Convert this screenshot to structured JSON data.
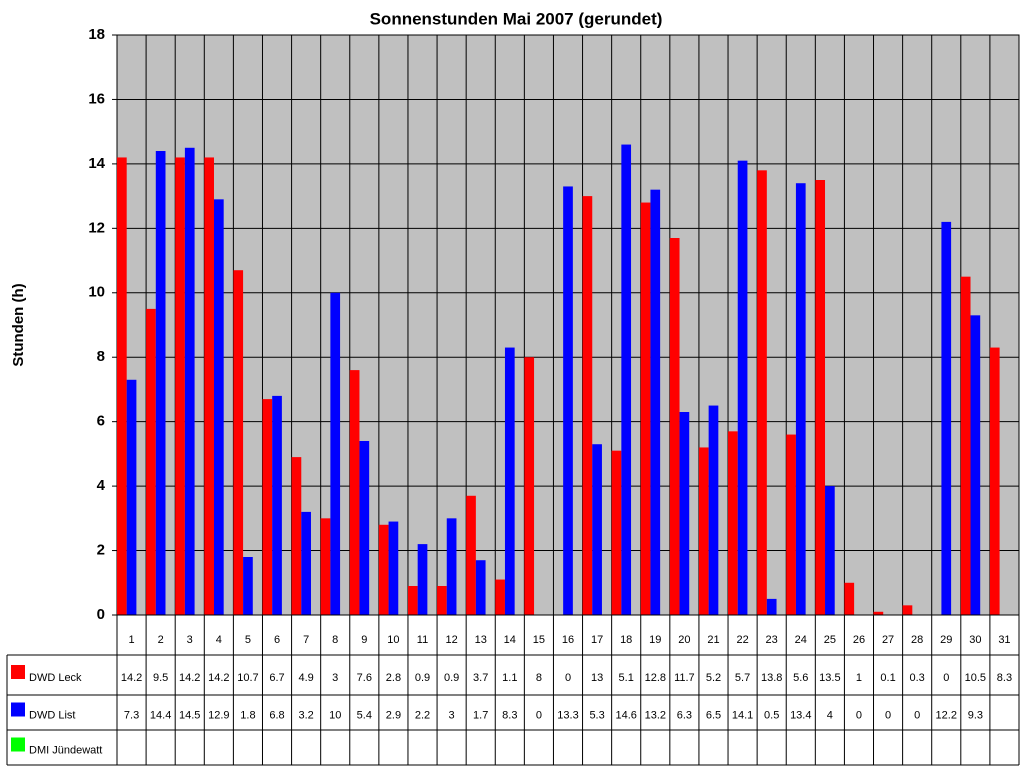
{
  "chart_data": {
    "type": "bar",
    "title": "Sonnenstunden Mai 2007 (gerundet)",
    "y_label": "Stunden (h)",
    "categories": [
      "1",
      "2",
      "3",
      "4",
      "5",
      "6",
      "7",
      "8",
      "9",
      "10",
      "11",
      "12",
      "13",
      "14",
      "15",
      "16",
      "17",
      "18",
      "19",
      "20",
      "21",
      "22",
      "23",
      "24",
      "25",
      "26",
      "27",
      "28",
      "29",
      "30",
      "31"
    ],
    "series": [
      {
        "name": "DWD Leck",
        "color": "#ff0000",
        "values": [
          14.2,
          9.5,
          14.2,
          14.2,
          10.7,
          6.7,
          4.9,
          3,
          7.6,
          2.8,
          0.9,
          0.9,
          3.7,
          1.1,
          8,
          0,
          13,
          5.1,
          12.8,
          11.7,
          5.2,
          5.7,
          13.8,
          5.6,
          13.5,
          1,
          0.1,
          0.3,
          0,
          10.5,
          8.3
        ]
      },
      {
        "name": "DWD List",
        "color": "#0000ff",
        "values": [
          7.3,
          14.4,
          14.5,
          12.9,
          1.8,
          6.8,
          3.2,
          10,
          5.4,
          2.9,
          2.2,
          3,
          1.7,
          8.3,
          0,
          13.3,
          5.3,
          14.6,
          13.2,
          6.3,
          6.5,
          14.1,
          0.5,
          13.4,
          4,
          0,
          0,
          0,
          12.2,
          9.3,
          null
        ]
      },
      {
        "name": "DMI Jündewatt",
        "color": "#00ff00",
        "values": [
          null,
          null,
          null,
          null,
          null,
          null,
          null,
          null,
          null,
          null,
          null,
          null,
          null,
          null,
          null,
          null,
          null,
          null,
          null,
          null,
          null,
          null,
          null,
          null,
          null,
          null,
          null,
          null,
          null,
          null,
          null
        ]
      }
    ],
    "ylim": [
      0,
      18
    ],
    "yticks": [
      0,
      2,
      4,
      6,
      8,
      10,
      12,
      14,
      16,
      18
    ],
    "grid": true,
    "plot_background": "#c0c0c0"
  }
}
